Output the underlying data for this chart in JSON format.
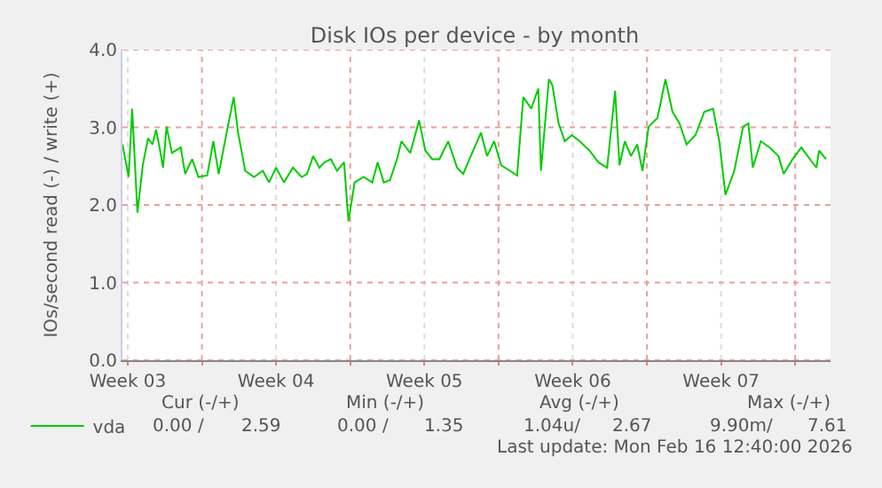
{
  "chart_data": {
    "type": "line",
    "title": "Disk IOs per device - by month",
    "ylabel": "IOs/second read (-) / write (+)",
    "xlim": [
      "2026-01-14T06:00",
      "2026-02-16T16:00"
    ],
    "ylim": [
      0,
      4
    ],
    "xticks": [
      {
        "value": "2026-01-14T12:00",
        "label": "Week 03"
      },
      {
        "value": "2026-01-18",
        "label": null
      },
      {
        "value": "2026-01-21T12:00",
        "label": "Week 04"
      },
      {
        "value": "2026-01-25",
        "label": null
      },
      {
        "value": "2026-01-28T12:00",
        "label": "Week 05"
      },
      {
        "value": "2026-02-01",
        "label": null
      },
      {
        "value": "2026-02-04T12:00",
        "label": "Week 06"
      },
      {
        "value": "2026-02-08",
        "label": null
      },
      {
        "value": "2026-02-11T12:00",
        "label": "Week 07"
      },
      {
        "value": "2026-02-15",
        "label": null
      }
    ],
    "yticks": [
      {
        "value": 0,
        "label": "0.0"
      },
      {
        "value": 1,
        "label": "1.0"
      },
      {
        "value": 2,
        "label": "2.0"
      },
      {
        "value": 3,
        "label": "3.0"
      },
      {
        "value": 4,
        "label": "4.0"
      }
    ],
    "grid": true,
    "legend": "bottom left",
    "series": [
      {
        "name": "vda",
        "color": "#00cc00",
        "x": [
          "2026-01-14T06:00",
          "2026-01-14T13:00",
          "2026-01-14T17:00",
          "2026-01-14T23:00",
          "2026-01-15T05:00",
          "2026-01-15T11:00",
          "2026-01-15T16:00",
          "2026-01-15T20:00",
          "2026-01-16T00:00",
          "2026-01-16T04:00",
          "2026-01-16T08:00",
          "2026-01-16T14:00",
          "2026-01-17T00:00",
          "2026-01-17T05:00",
          "2026-01-17T13:00",
          "2026-01-17T20:00",
          "2026-01-18T06:00",
          "2026-01-18T13:00",
          "2026-01-18T19:00",
          "2026-01-19T04:00",
          "2026-01-19T12:00",
          "2026-01-19T17:00",
          "2026-01-20T01:00",
          "2026-01-20T11:00",
          "2026-01-20T21:00",
          "2026-01-21T04:00",
          "2026-01-21T12:00",
          "2026-01-21T21:00",
          "2026-01-22T07:00",
          "2026-01-22T17:00",
          "2026-01-22T23:00",
          "2026-01-23T06:00",
          "2026-01-23T13:00",
          "2026-01-23T19:00",
          "2026-01-24T02:00",
          "2026-01-24T09:00",
          "2026-01-24T17:00",
          "2026-01-24T22:00",
          "2026-01-25T05:00",
          "2026-01-25T15:00",
          "2026-01-26T01:00",
          "2026-01-26T07:00",
          "2026-01-26T14:00",
          "2026-01-26T21:00",
          "2026-01-27T05:00",
          "2026-01-27T10:00",
          "2026-01-27T20:00",
          "2026-01-28T06:00",
          "2026-01-28T13:00",
          "2026-01-28T21:00",
          "2026-01-29T05:00",
          "2026-01-29T15:00",
          "2026-01-30T01:00",
          "2026-01-30T08:00",
          "2026-01-30T15:00",
          "2026-01-31T04:00",
          "2026-01-31T11:00",
          "2026-01-31T19:00",
          "2026-02-01T03:00",
          "2026-02-01T13:00",
          "2026-02-01T21:00",
          "2026-02-02T04:00",
          "2026-02-02T13:00",
          "2026-02-02T21:00",
          "2026-02-03T00:00",
          "2026-02-03T09:00",
          "2026-02-03T13:00",
          "2026-02-03T20:00",
          "2026-02-04T03:00",
          "2026-02-04T11:00",
          "2026-02-04T20:00",
          "2026-02-05T07:00",
          "2026-02-05T17:00",
          "2026-02-06T03:00",
          "2026-02-06T12:00",
          "2026-02-06T17:00",
          "2026-02-06T23:00",
          "2026-02-07T06:00",
          "2026-02-07T13:00",
          "2026-02-07T19:00",
          "2026-02-08T02:00",
          "2026-02-08T12:00",
          "2026-02-08T21:00",
          "2026-02-09T05:00",
          "2026-02-09T13:00",
          "2026-02-09T21:00",
          "2026-02-10T07:00",
          "2026-02-10T17:00",
          "2026-02-11T03:00",
          "2026-02-11T10:00",
          "2026-02-11T17:00",
          "2026-02-12T03:00",
          "2026-02-12T13:00",
          "2026-02-12T19:00",
          "2026-02-13T00:00",
          "2026-02-13T09:00",
          "2026-02-13T19:00",
          "2026-02-14T05:00",
          "2026-02-14T11:00",
          "2026-02-14T21:00",
          "2026-02-15T07:00",
          "2026-02-15T14:00",
          "2026-02-16T00:00",
          "2026-02-16T03:00",
          "2026-02-16T11:00"
        ],
        "values": [
          2.78,
          2.36,
          3.24,
          1.9,
          2.51,
          2.86,
          2.78,
          2.97,
          2.74,
          2.48,
          3.01,
          2.67,
          2.74,
          2.4,
          2.59,
          2.36,
          2.38,
          2.82,
          2.4,
          2.93,
          3.39,
          2.93,
          2.44,
          2.36,
          2.44,
          2.29,
          2.48,
          2.29,
          2.48,
          2.36,
          2.4,
          2.63,
          2.48,
          2.55,
          2.59,
          2.44,
          2.55,
          1.79,
          2.29,
          2.36,
          2.29,
          2.55,
          2.29,
          2.32,
          2.59,
          2.82,
          2.67,
          3.09,
          2.7,
          2.59,
          2.59,
          2.82,
          2.48,
          2.4,
          2.59,
          2.93,
          2.63,
          2.82,
          2.51,
          2.44,
          2.38,
          3.39,
          3.24,
          3.5,
          2.44,
          3.62,
          3.54,
          3.05,
          2.82,
          2.9,
          2.82,
          2.7,
          2.55,
          2.48,
          3.47,
          2.51,
          2.82,
          2.63,
          2.78,
          2.44,
          3.01,
          3.12,
          3.62,
          3.2,
          3.05,
          2.78,
          2.9,
          3.2,
          3.24,
          2.82,
          2.13,
          2.44,
          3.01,
          3.05,
          2.48,
          2.82,
          2.74,
          2.63,
          2.4,
          2.59,
          2.74,
          2.63,
          2.48,
          2.7,
          2.59
        ]
      }
    ],
    "annotations": [
      "Cur (-/+)",
      "Min (-/+)",
      "Avg (-/+)",
      "Max (-/+)",
      "0.00 /",
      "2.59",
      "0.00 /",
      "1.35",
      "1.04u/",
      "2.67",
      "9.90m/",
      "7.61",
      "Last update: Mon Feb 16 12:40:00 2026"
    ]
  }
}
